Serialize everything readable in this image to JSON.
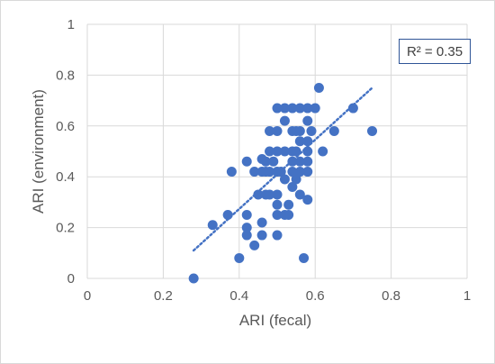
{
  "chart_data": {
    "type": "scatter",
    "title": "",
    "xlabel": "ARI (fecal)",
    "ylabel": "ARI (environment)",
    "xlim": [
      0,
      1
    ],
    "ylim": [
      0,
      1
    ],
    "xticks": [
      "0",
      "0.2",
      "0.4",
      "0.6",
      "0.8",
      "1"
    ],
    "yticks": [
      "0",
      "0.2",
      "0.4",
      "0.6",
      "0.8",
      "1"
    ],
    "grid": true,
    "legend": "none",
    "annotation": "R² = 0.35",
    "colors": {
      "point": "#4472c4",
      "trendline": "#4472c4",
      "grid": "#d9d9d9",
      "box_border": "#2f5597"
    },
    "trendline": {
      "type": "linear",
      "style": "dotted",
      "x": [
        0.28,
        0.75
      ],
      "y": [
        0.11,
        0.75
      ]
    },
    "series": [
      {
        "points": [
          [
            0.28,
            0.0
          ],
          [
            0.33,
            0.21
          ],
          [
            0.37,
            0.25
          ],
          [
            0.38,
            0.42
          ],
          [
            0.4,
            0.08
          ],
          [
            0.42,
            0.46
          ],
          [
            0.42,
            0.25
          ],
          [
            0.42,
            0.2
          ],
          [
            0.42,
            0.17
          ],
          [
            0.44,
            0.13
          ],
          [
            0.44,
            0.42
          ],
          [
            0.45,
            0.33
          ],
          [
            0.46,
            0.42
          ],
          [
            0.46,
            0.47
          ],
          [
            0.46,
            0.22
          ],
          [
            0.46,
            0.17
          ],
          [
            0.47,
            0.33
          ],
          [
            0.47,
            0.42
          ],
          [
            0.47,
            0.46
          ],
          [
            0.48,
            0.5
          ],
          [
            0.48,
            0.58
          ],
          [
            0.48,
            0.42
          ],
          [
            0.48,
            0.33
          ],
          [
            0.49,
            0.46
          ],
          [
            0.5,
            0.67
          ],
          [
            0.5,
            0.58
          ],
          [
            0.5,
            0.5
          ],
          [
            0.5,
            0.42
          ],
          [
            0.5,
            0.33
          ],
          [
            0.5,
            0.29
          ],
          [
            0.5,
            0.25
          ],
          [
            0.5,
            0.17
          ],
          [
            0.51,
            0.42
          ],
          [
            0.52,
            0.67
          ],
          [
            0.52,
            0.62
          ],
          [
            0.52,
            0.5
          ],
          [
            0.52,
            0.39
          ],
          [
            0.52,
            0.25
          ],
          [
            0.53,
            0.29
          ],
          [
            0.53,
            0.25
          ],
          [
            0.54,
            0.67
          ],
          [
            0.54,
            0.58
          ],
          [
            0.54,
            0.5
          ],
          [
            0.54,
            0.46
          ],
          [
            0.54,
            0.42
          ],
          [
            0.54,
            0.36
          ],
          [
            0.55,
            0.58
          ],
          [
            0.55,
            0.5
          ],
          [
            0.55,
            0.39
          ],
          [
            0.56,
            0.67
          ],
          [
            0.56,
            0.58
          ],
          [
            0.56,
            0.54
          ],
          [
            0.56,
            0.46
          ],
          [
            0.56,
            0.42
          ],
          [
            0.56,
            0.33
          ],
          [
            0.57,
            0.08
          ],
          [
            0.58,
            0.67
          ],
          [
            0.58,
            0.62
          ],
          [
            0.58,
            0.54
          ],
          [
            0.58,
            0.5
          ],
          [
            0.58,
            0.46
          ],
          [
            0.58,
            0.42
          ],
          [
            0.58,
            0.31
          ],
          [
            0.59,
            0.58
          ],
          [
            0.6,
            0.67
          ],
          [
            0.61,
            0.75
          ],
          [
            0.62,
            0.5
          ],
          [
            0.65,
            0.58
          ],
          [
            0.7,
            0.67
          ],
          [
            0.75,
            0.58
          ]
        ]
      }
    ]
  }
}
